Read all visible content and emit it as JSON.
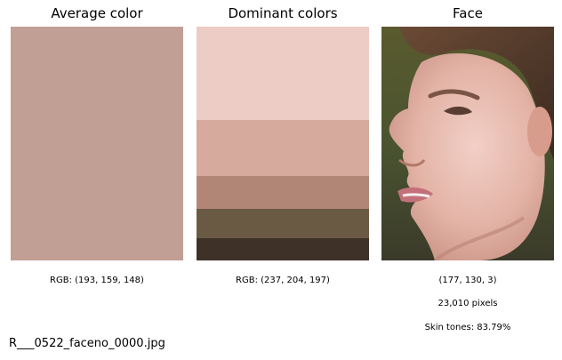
{
  "panels": {
    "average": {
      "title": "Average color",
      "caption": "RGB: (193, 159, 148)",
      "color": "#c19f94"
    },
    "dominant": {
      "title": "Dominant colors",
      "caption": "RGB: (237, 204, 197)",
      "colors": [
        "#edccc5",
        "#d6aa9d",
        "#b28677",
        "#6b5a43",
        "#3e3128"
      ]
    },
    "face": {
      "title": "Face",
      "shape": "(177, 130, 3)",
      "pixels": "23,010 pixels",
      "skin_tones": "Skin tones: 83.79%"
    }
  },
  "filename": "R___0522_faceno_0000.jpg"
}
